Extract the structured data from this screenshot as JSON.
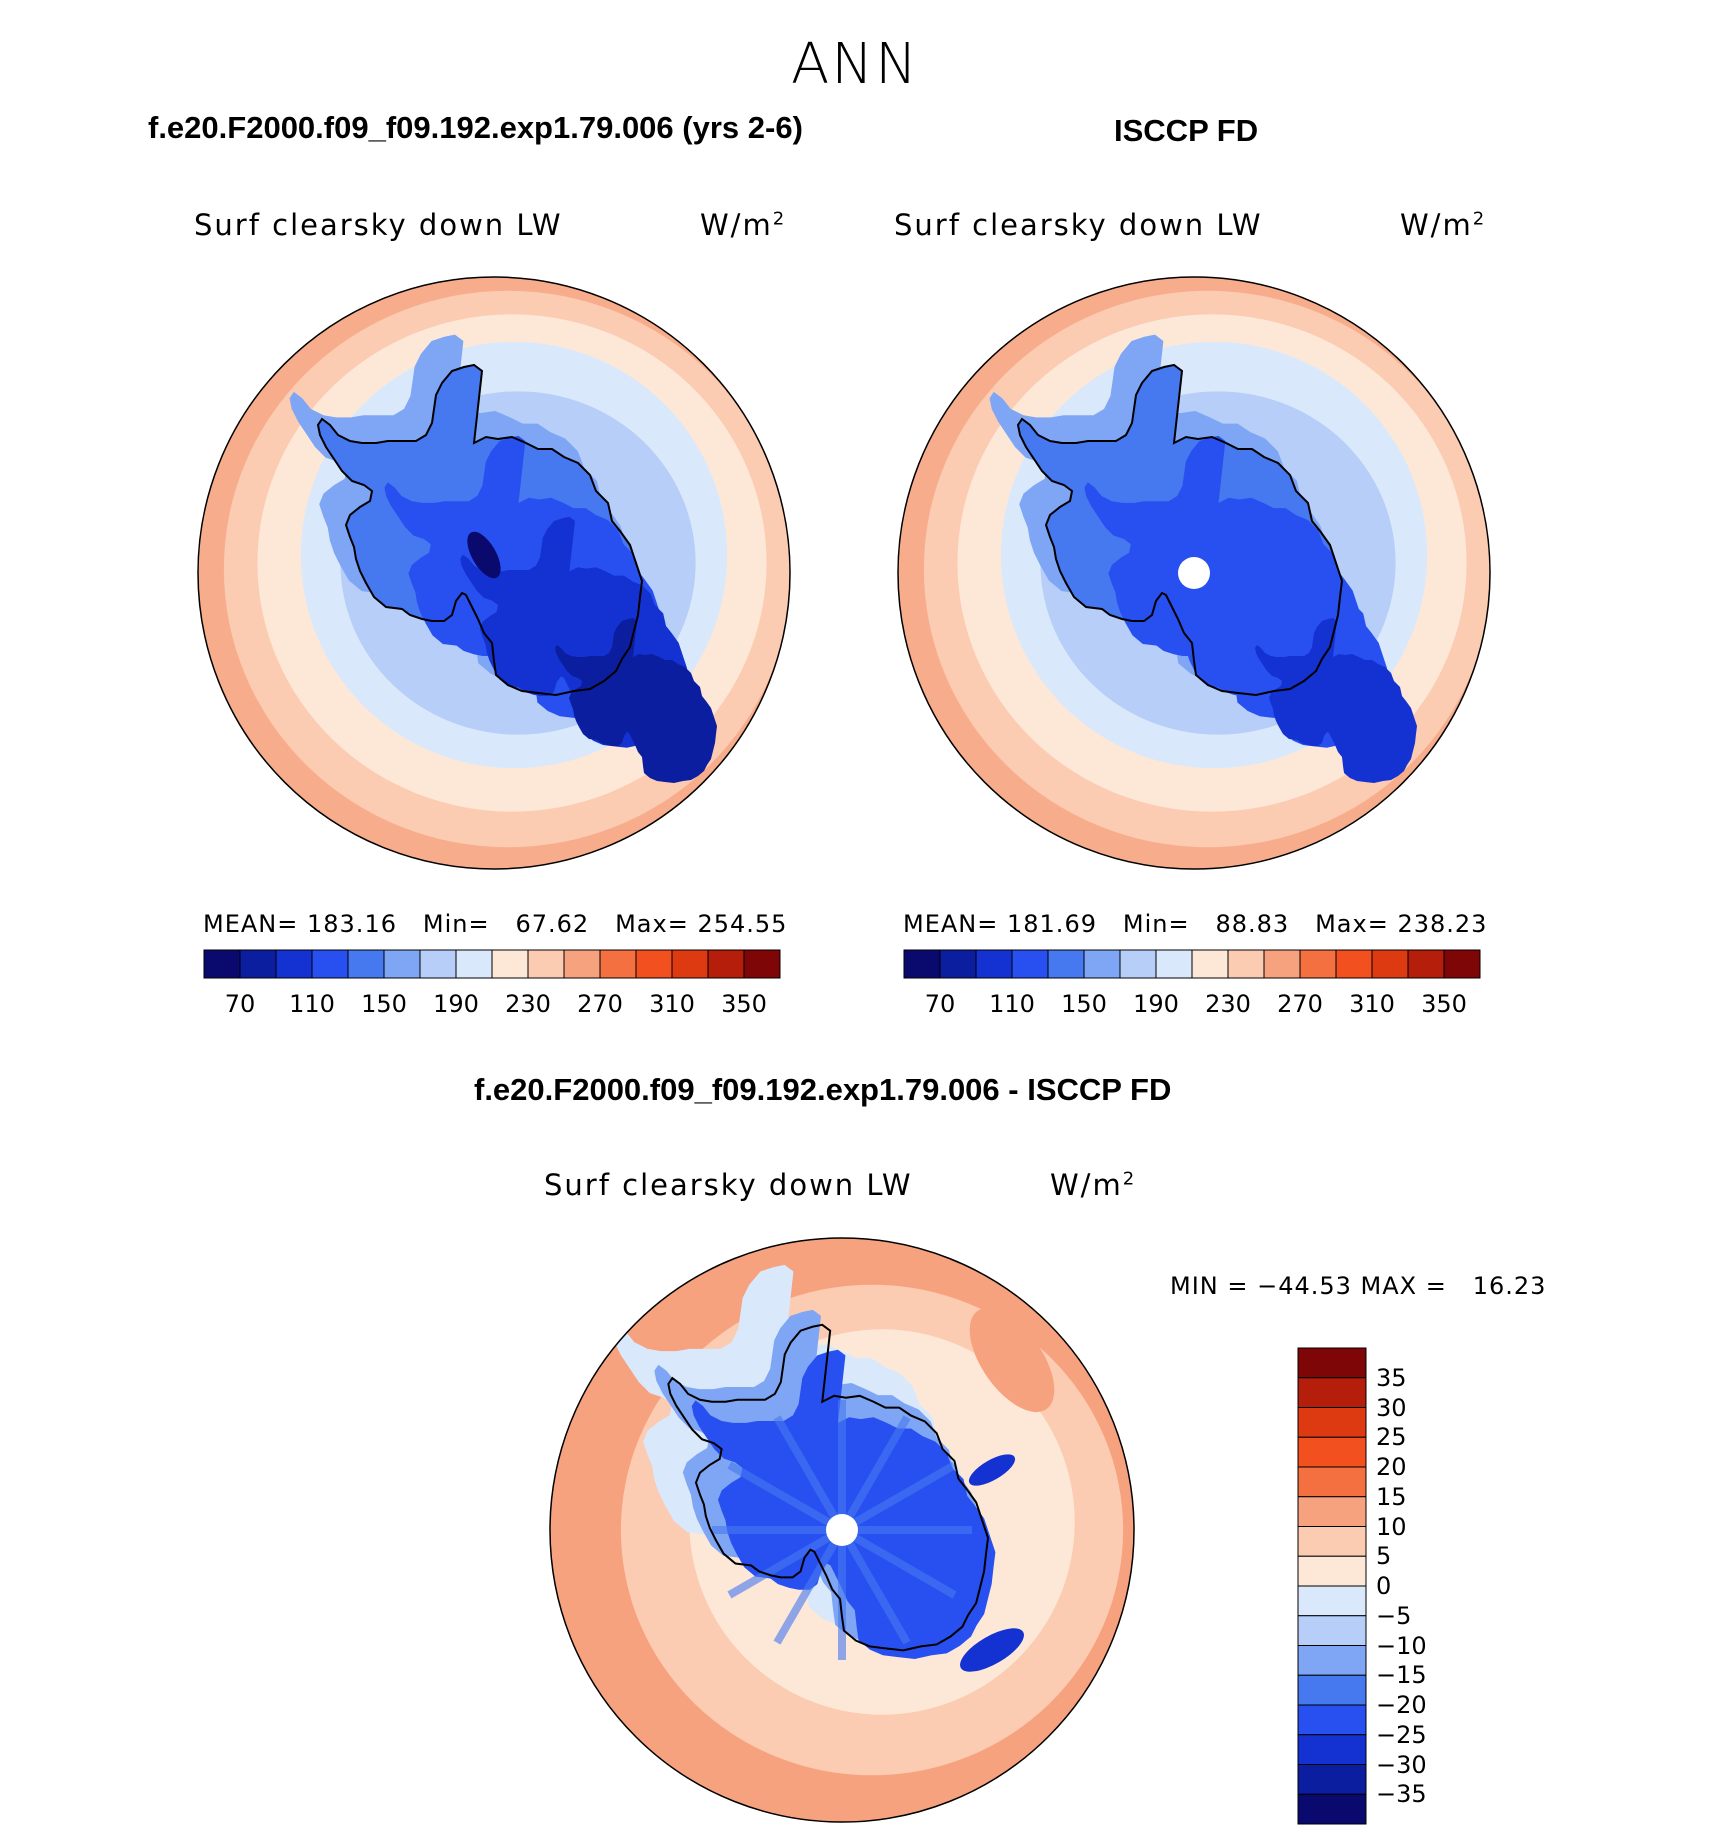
{
  "title": "ANN",
  "panels": [
    {
      "heading": "f.e20.F2000.f09_f09.192.exp1.79.006 (yrs 2-6)",
      "label": "Surf clearsky down LW",
      "units": "W/m",
      "units_sup": "2",
      "stats": {
        "mean_label": "MEAN=",
        "mean": "183.16",
        "min_label": "Min=",
        "min": "67.62",
        "max_label": "Max=",
        "max": "254.55"
      },
      "pole_hole": false
    },
    {
      "heading": "ISCCP FD",
      "label": "Surf clearsky down LW",
      "units": "W/m",
      "units_sup": "2",
      "stats": {
        "mean_label": "MEAN=",
        "mean": "181.69",
        "min_label": "Min=",
        "min": "88.83",
        "max_label": "Max=",
        "max": "238.23"
      },
      "pole_hole": true
    }
  ],
  "diff_panel": {
    "heading": "f.e20.F2000.f09_f09.192.exp1.79.006 - ISCCP FD",
    "label": "Surf clearsky down LW",
    "units": "W/m",
    "units_sup": "2",
    "minmax_text": "MIN = −44.53 MAX =   16.23",
    "pole_hole": true
  },
  "colorbar_top": {
    "colors": [
      "#0a0a6e",
      "#0c1ea0",
      "#1432d2",
      "#2850f0",
      "#4678f0",
      "#7ea6f4",
      "#b6cef8",
      "#dae8fc",
      "#fde8d8",
      "#fbcbb2",
      "#f7a27e",
      "#f47040",
      "#f2501e",
      "#de3a12",
      "#b41e0a",
      "#7e0606"
    ],
    "tick_labels": [
      "70",
      "110",
      "150",
      "190",
      "230",
      "270",
      "310",
      "350"
    ]
  },
  "colorbar_diff": {
    "colors": [
      "#0a0a6e",
      "#0c1ea0",
      "#1432d2",
      "#2850f0",
      "#4678f0",
      "#7ea6f4",
      "#b6cef8",
      "#dae8fc",
      "#fde8d8",
      "#fbcbb2",
      "#f7a27e",
      "#f47040",
      "#f2501e",
      "#de3a12",
      "#b41e0a",
      "#7e0606"
    ],
    "tick_labels": [
      "35",
      "30",
      "25",
      "20",
      "15",
      "10",
      "5",
      "0",
      "−5",
      "−10",
      "−15",
      "−20",
      "−25",
      "−30",
      "−35"
    ]
  },
  "map_colors": {
    "ring_outer": "#f7ad8c",
    "ring_mid": "#fbcbb2",
    "ring_light": "#fde8d8",
    "ocean_light": "#dae8fc",
    "ocean_blue": "#b6cef8",
    "coast_blue": "#7ea6f4",
    "land_1": "#4678f0",
    "land_2": "#2850f0",
    "land_3": "#1432d2",
    "land_4": "#0c1ea0",
    "land_5": "#0a0a6e",
    "diff_outer": "#f7a27e",
    "diff_ring": "#fbcbb2",
    "diff_light": "#fde8d8",
    "diff_ocean": "#dae8fc",
    "diff_land": "#2850f0",
    "diff_land_dark": "#1432d2"
  }
}
